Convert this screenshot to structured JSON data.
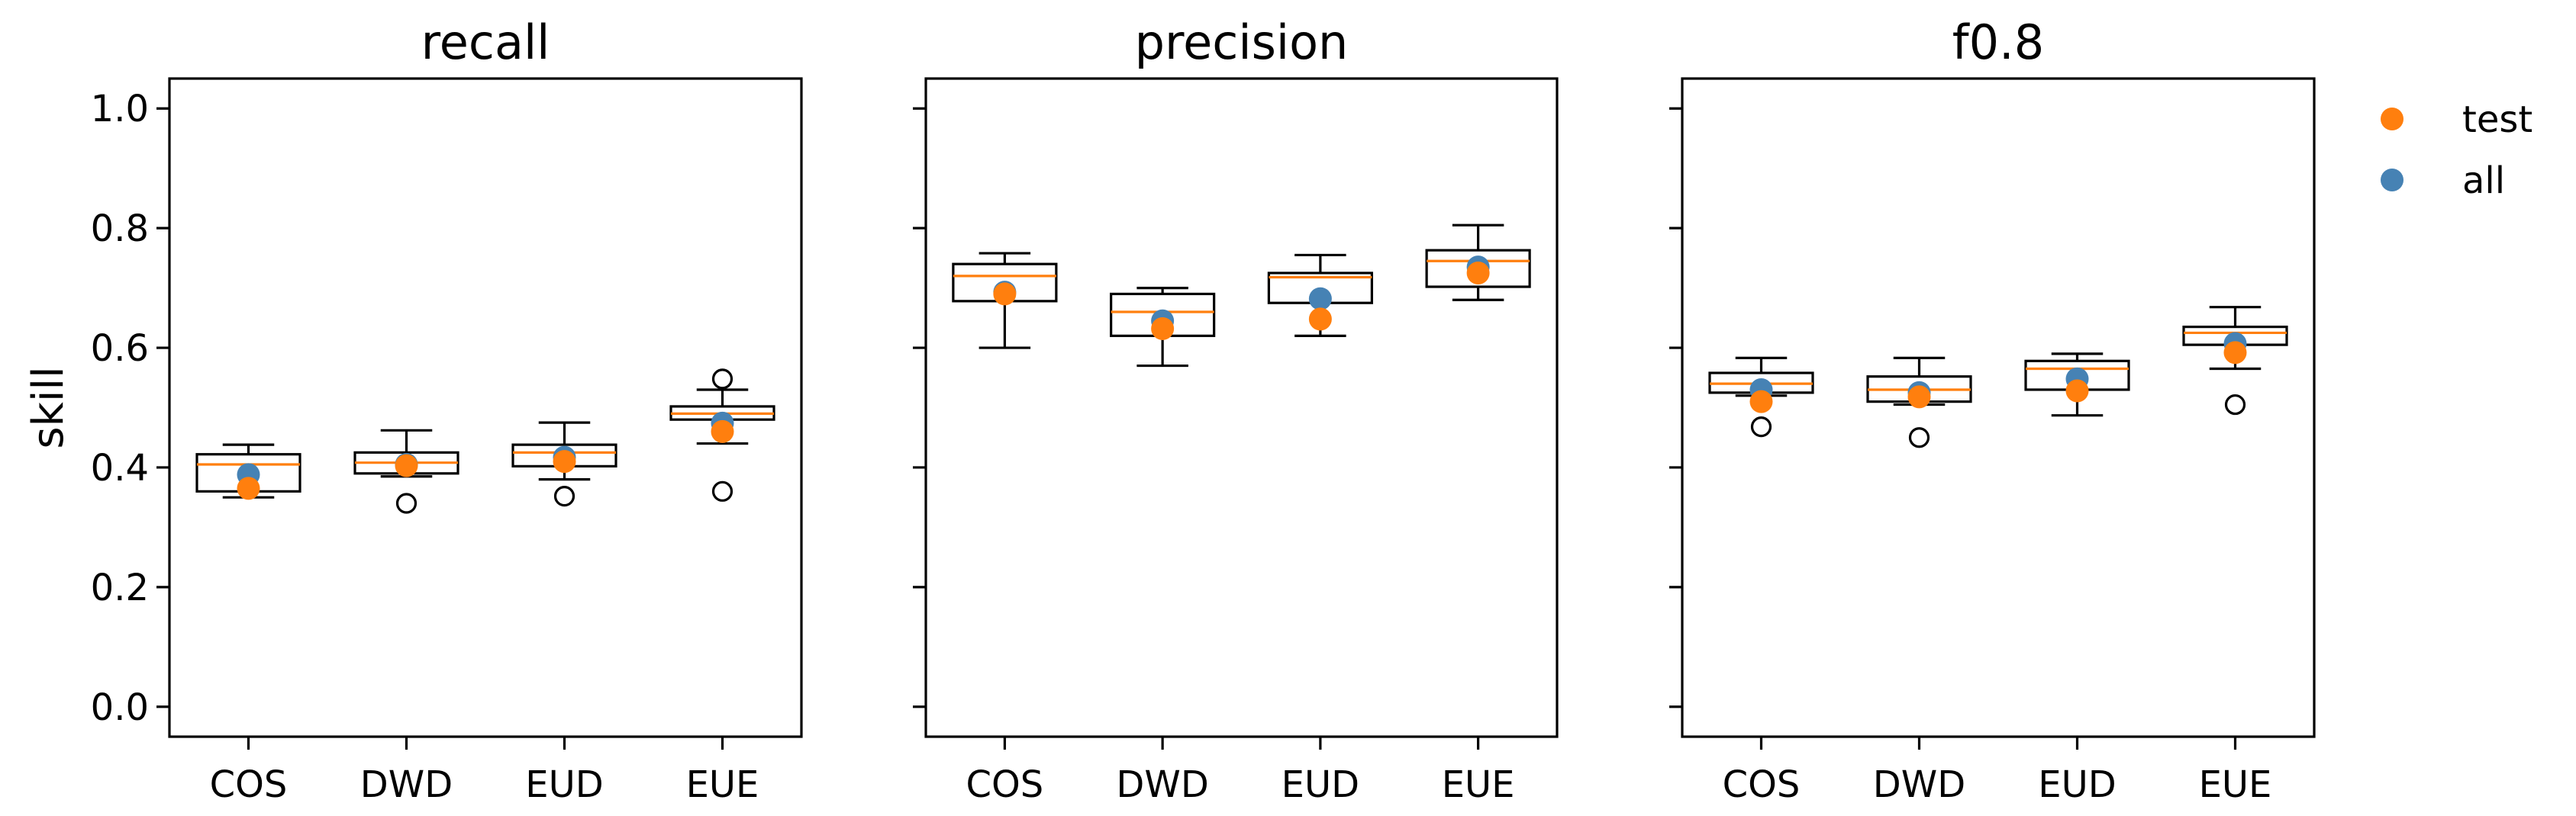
{
  "legend": {
    "placement": "outside-right-top",
    "entries": [
      {
        "label": "test",
        "color": "#ff7f0e"
      },
      {
        "label": "all",
        "color": "#4682b4"
      }
    ]
  },
  "chart_data": [
    {
      "type": "box",
      "title": "recall",
      "xlabel": "",
      "ylabel": "skill",
      "ylim": [
        -0.05,
        1.05
      ],
      "yticks": [
        "0.0",
        "0.2",
        "0.4",
        "0.6",
        "0.8",
        "1.0"
      ],
      "categories": [
        "COS",
        "DWD",
        "EUD",
        "EUE"
      ],
      "boxes": [
        {
          "whislo": 0.35,
          "q1": 0.36,
          "med": 0.405,
          "q3": 0.422,
          "whishi": 0.438,
          "fliers": []
        },
        {
          "whislo": 0.385,
          "q1": 0.39,
          "med": 0.408,
          "q3": 0.425,
          "whishi": 0.462,
          "fliers": [
            0.34
          ]
        },
        {
          "whislo": 0.38,
          "q1": 0.402,
          "med": 0.425,
          "q3": 0.438,
          "whishi": 0.475,
          "fliers": [
            0.352
          ]
        },
        {
          "whislo": 0.44,
          "q1": 0.48,
          "med": 0.49,
          "q3": 0.502,
          "whishi": 0.53,
          "fliers": [
            0.36,
            0.548
          ]
        }
      ],
      "series": [
        {
          "name": "all",
          "values": [
            0.388,
            0.405,
            0.417,
            0.474
          ]
        },
        {
          "name": "test",
          "values": [
            0.365,
            0.403,
            0.41,
            0.46
          ]
        }
      ]
    },
    {
      "type": "box",
      "title": "precision",
      "xlabel": "",
      "ylabel": "",
      "ylim": [
        -0.05,
        1.05
      ],
      "yticks": [],
      "categories": [
        "COS",
        "DWD",
        "EUD",
        "EUE"
      ],
      "boxes": [
        {
          "whislo": 0.6,
          "q1": 0.678,
          "med": 0.72,
          "q3": 0.74,
          "whishi": 0.758,
          "fliers": []
        },
        {
          "whislo": 0.57,
          "q1": 0.62,
          "med": 0.66,
          "q3": 0.69,
          "whishi": 0.7,
          "fliers": []
        },
        {
          "whislo": 0.62,
          "q1": 0.675,
          "med": 0.718,
          "q3": 0.725,
          "whishi": 0.755,
          "fliers": []
        },
        {
          "whislo": 0.68,
          "q1": 0.702,
          "med": 0.745,
          "q3": 0.763,
          "whishi": 0.805,
          "fliers": []
        }
      ],
      "series": [
        {
          "name": "all",
          "values": [
            0.693,
            0.645,
            0.682,
            0.735
          ]
        },
        {
          "name": "test",
          "values": [
            0.69,
            0.632,
            0.648,
            0.725
          ]
        }
      ]
    },
    {
      "type": "box",
      "title": "f0.8",
      "xlabel": "",
      "ylabel": "",
      "ylim": [
        -0.05,
        1.05
      ],
      "yticks": [],
      "categories": [
        "COS",
        "DWD",
        "EUD",
        "EUE"
      ],
      "boxes": [
        {
          "whislo": 0.52,
          "q1": 0.525,
          "med": 0.54,
          "q3": 0.558,
          "whishi": 0.583,
          "fliers": [
            0.468
          ]
        },
        {
          "whislo": 0.505,
          "q1": 0.51,
          "med": 0.53,
          "q3": 0.552,
          "whishi": 0.583,
          "fliers": [
            0.45
          ]
        },
        {
          "whislo": 0.487,
          "q1": 0.53,
          "med": 0.565,
          "q3": 0.578,
          "whishi": 0.59,
          "fliers": []
        },
        {
          "whislo": 0.565,
          "q1": 0.605,
          "med": 0.625,
          "q3": 0.635,
          "whishi": 0.668,
          "fliers": [
            0.505
          ]
        }
      ],
      "series": [
        {
          "name": "all",
          "values": [
            0.53,
            0.525,
            0.548,
            0.607
          ]
        },
        {
          "name": "test",
          "values": [
            0.51,
            0.518,
            0.528,
            0.592
          ]
        }
      ]
    }
  ]
}
